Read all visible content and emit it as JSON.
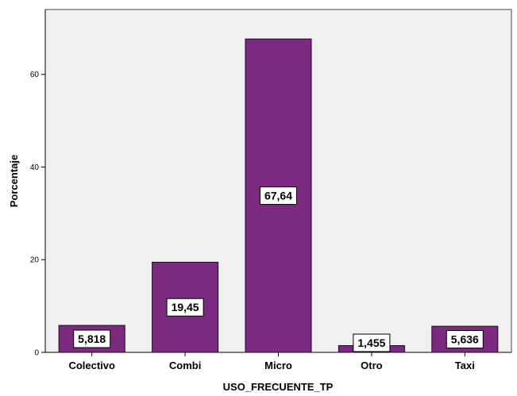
{
  "chart_data": {
    "type": "bar",
    "title": "",
    "xlabel": "USO_FRECUENTE_TP",
    "ylabel": "Porcentaje",
    "categories": [
      "Colectivo",
      "Combi",
      "Micro",
      "Otro",
      "Taxi"
    ],
    "values": [
      5.818,
      19.45,
      67.64,
      1.455,
      5.636
    ],
    "data_labels": [
      "5,818",
      "19,45",
      "67,64",
      "1,455",
      "5,636"
    ],
    "ylim": [
      0,
      74
    ],
    "yticks": [
      0,
      20,
      40,
      60
    ],
    "ytick_labels": [
      "0",
      "20",
      "40",
      "60"
    ],
    "grid": false,
    "legend": "none"
  },
  "colors": {
    "bar_fill": "#7b2a7f",
    "bar_stroke": "#1a0a1a",
    "plot_background": "#f0f0f0",
    "label_box": "#ffffff"
  }
}
